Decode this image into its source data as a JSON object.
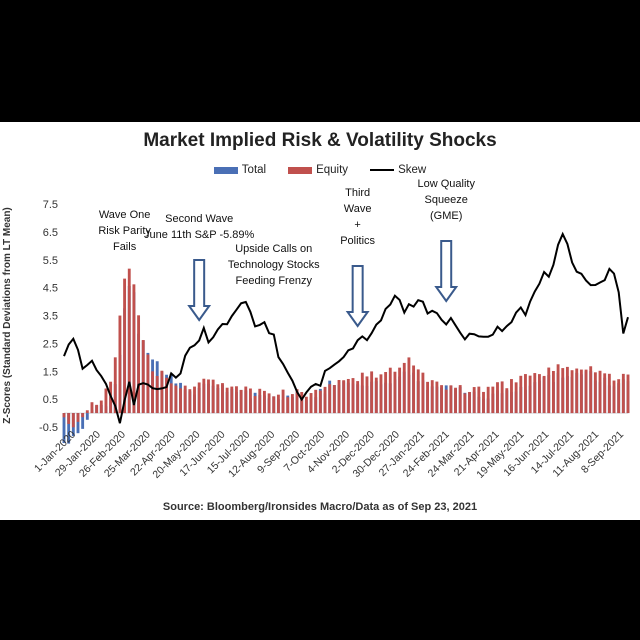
{
  "chart_data": {
    "type": "bar",
    "title": "Market Implied Risk & Volatility Shocks",
    "ylabel": "Z-Scores (Standard Deviations from LT Mean)",
    "xlabel": "",
    "source": "Source: Bloomberg/Ironsides Macro/Data as of Sep 23, 2021",
    "ylim": [
      -0.5,
      7.5
    ],
    "yticks": [
      "7.5",
      "6.5",
      "5.5",
      "4.5",
      "3.5",
      "2.5",
      "1.5",
      "0.5",
      "-0.5"
    ],
    "xticks": [
      "1-Jan-2020",
      "29-Jan-2020",
      "26-Feb-2020",
      "25-Mar-2020",
      "22-Apr-2020",
      "20-May-2020",
      "17-Jun-2020",
      "15-Jul-2020",
      "12-Aug-2020",
      "9-Sep-2020",
      "7-Oct-2020",
      "4-Nov-2020",
      "2-Dec-2020",
      "30-Dec-2020",
      "27-Jan-2021",
      "24-Feb-2021",
      "24-Mar-2021",
      "21-Apr-2021",
      "19-May-2021",
      "16-Jun-2021",
      "14-Jul-2021",
      "11-Aug-2021",
      "8-Sep-2021"
    ],
    "legend_placement": "top",
    "grid": false,
    "series": [
      {
        "name": "Total",
        "kind": "bar",
        "color": "#4a6fb5",
        "points": [
          [
            0,
            -0.9
          ],
          [
            2,
            -1.0
          ],
          [
            4,
            -0.7
          ],
          [
            6,
            0.1
          ],
          [
            8,
            0.3
          ],
          [
            10,
            0.5
          ],
          [
            11,
            0.9
          ],
          [
            12,
            2.2
          ],
          [
            13,
            3.6
          ],
          [
            14,
            4.6
          ],
          [
            15,
            4.2
          ],
          [
            16,
            3.0
          ],
          [
            17,
            2.6
          ],
          [
            18,
            2.2
          ],
          [
            19,
            1.9
          ],
          [
            21,
            1.6
          ],
          [
            23,
            1.3
          ],
          [
            25,
            1.0
          ],
          [
            28,
            0.7
          ],
          [
            31,
            1.1
          ],
          [
            35,
            0.8
          ],
          [
            40,
            0.7
          ],
          [
            45,
            0.6
          ],
          [
            50,
            0.6
          ],
          [
            53,
            0.5
          ],
          [
            57,
            1.0
          ],
          [
            60,
            1.0
          ],
          [
            65,
            1.1
          ],
          [
            70,
            1.2
          ],
          [
            74,
            1.5
          ],
          [
            78,
            1.0
          ],
          [
            84,
            0.8
          ],
          [
            90,
            0.6
          ],
          [
            94,
            0.8
          ],
          [
            100,
            1.0
          ],
          [
            106,
            1.3
          ],
          [
            112,
            1.4
          ],
          [
            118,
            1.0
          ],
          [
            121,
            1.1
          ]
        ]
      },
      {
        "name": "Equity",
        "kind": "bar",
        "color": "#c0504d",
        "points": [
          [
            0,
            -0.3
          ],
          [
            2,
            -0.4
          ],
          [
            4,
            -0.2
          ],
          [
            6,
            0.3
          ],
          [
            8,
            0.6
          ],
          [
            10,
            1.2
          ],
          [
            11,
            2.0
          ],
          [
            12,
            3.6
          ],
          [
            13,
            4.8
          ],
          [
            14,
            5.2
          ],
          [
            15,
            4.6
          ],
          [
            16,
            3.4
          ],
          [
            17,
            2.6
          ],
          [
            18,
            2.1
          ],
          [
            19,
            1.6
          ],
          [
            21,
            1.4
          ],
          [
            23,
            1.2
          ],
          [
            25,
            1.0
          ],
          [
            28,
            0.8
          ],
          [
            31,
            1.3
          ],
          [
            35,
            0.9
          ],
          [
            40,
            0.8
          ],
          [
            45,
            0.7
          ],
          [
            50,
            0.7
          ],
          [
            53,
            0.6
          ],
          [
            57,
            1.2
          ],
          [
            60,
            1.1
          ],
          [
            65,
            1.4
          ],
          [
            70,
            1.5
          ],
          [
            74,
            2.0
          ],
          [
            78,
            1.2
          ],
          [
            84,
            0.9
          ],
          [
            90,
            0.8
          ],
          [
            94,
            1.0
          ],
          [
            100,
            1.3
          ],
          [
            106,
            1.6
          ],
          [
            112,
            1.7
          ],
          [
            118,
            1.3
          ],
          [
            121,
            1.4
          ]
        ]
      },
      {
        "name": "Skew",
        "kind": "line",
        "color": "#000000",
        "points": [
          [
            0,
            1.9
          ],
          [
            2,
            2.6
          ],
          [
            4,
            1.6
          ],
          [
            6,
            1.8
          ],
          [
            8,
            1.3
          ],
          [
            10,
            0.8
          ],
          [
            11,
            0.4
          ],
          [
            12,
            -0.2
          ],
          [
            13,
            0.3
          ],
          [
            14,
            0.9
          ],
          [
            15,
            0.5
          ],
          [
            16,
            0.8
          ],
          [
            17,
            1.2
          ],
          [
            18,
            1.1
          ],
          [
            19,
            0.9
          ],
          [
            21,
            0.8
          ],
          [
            23,
            1.2
          ],
          [
            25,
            1.5
          ],
          [
            27,
            2.2
          ],
          [
            28,
            2.6
          ],
          [
            30,
            2.9
          ],
          [
            31,
            2.4
          ],
          [
            33,
            3.0
          ],
          [
            35,
            3.1
          ],
          [
            37,
            3.6
          ],
          [
            39,
            4.0
          ],
          [
            41,
            3.3
          ],
          [
            43,
            3.1
          ],
          [
            45,
            2.6
          ],
          [
            47,
            1.7
          ],
          [
            49,
            1.0
          ],
          [
            51,
            0.6
          ],
          [
            53,
            0.8
          ],
          [
            55,
            1.1
          ],
          [
            57,
            1.5
          ],
          [
            59,
            2.0
          ],
          [
            61,
            2.4
          ],
          [
            63,
            2.5
          ],
          [
            65,
            2.8
          ],
          [
            67,
            3.2
          ],
          [
            69,
            3.8
          ],
          [
            71,
            4.1
          ],
          [
            73,
            3.6
          ],
          [
            75,
            4.0
          ],
          [
            77,
            3.8
          ],
          [
            79,
            3.5
          ],
          [
            81,
            3.3
          ],
          [
            83,
            3.2
          ],
          [
            85,
            2.9
          ],
          [
            87,
            2.8
          ],
          [
            89,
            2.6
          ],
          [
            91,
            2.8
          ],
          [
            93,
            3.1
          ],
          [
            95,
            3.0
          ],
          [
            97,
            3.5
          ],
          [
            99,
            3.7
          ],
          [
            101,
            4.2
          ],
          [
            103,
            5.0
          ],
          [
            105,
            5.2
          ],
          [
            107,
            6.6
          ],
          [
            109,
            5.6
          ],
          [
            111,
            4.9
          ],
          [
            113,
            4.7
          ],
          [
            115,
            4.5
          ],
          [
            117,
            5.3
          ],
          [
            119,
            4.4
          ],
          [
            120,
            3.0
          ],
          [
            121,
            3.6
          ]
        ]
      }
    ],
    "annotations": [
      {
        "lines": [
          "Wave  One",
          "Risk Parity",
          "Fails"
        ],
        "x": 13,
        "arrow": false
      },
      {
        "lines": [
          "Second Wave",
          "June 11th S&P -5.89%"
        ],
        "x": 29,
        "arrow": true
      },
      {
        "lines": [
          "Upside Calls on",
          "Technology Stocks",
          "Feeding Frenzy"
        ],
        "x": 45,
        "arrow": false
      },
      {
        "lines": [
          "Third",
          "Wave",
          "+",
          "Politics"
        ],
        "x": 63,
        "arrow": true
      },
      {
        "lines": [
          "Low Quality",
          "Squeeze",
          "(GME)"
        ],
        "x": 82,
        "arrow": true
      }
    ]
  }
}
